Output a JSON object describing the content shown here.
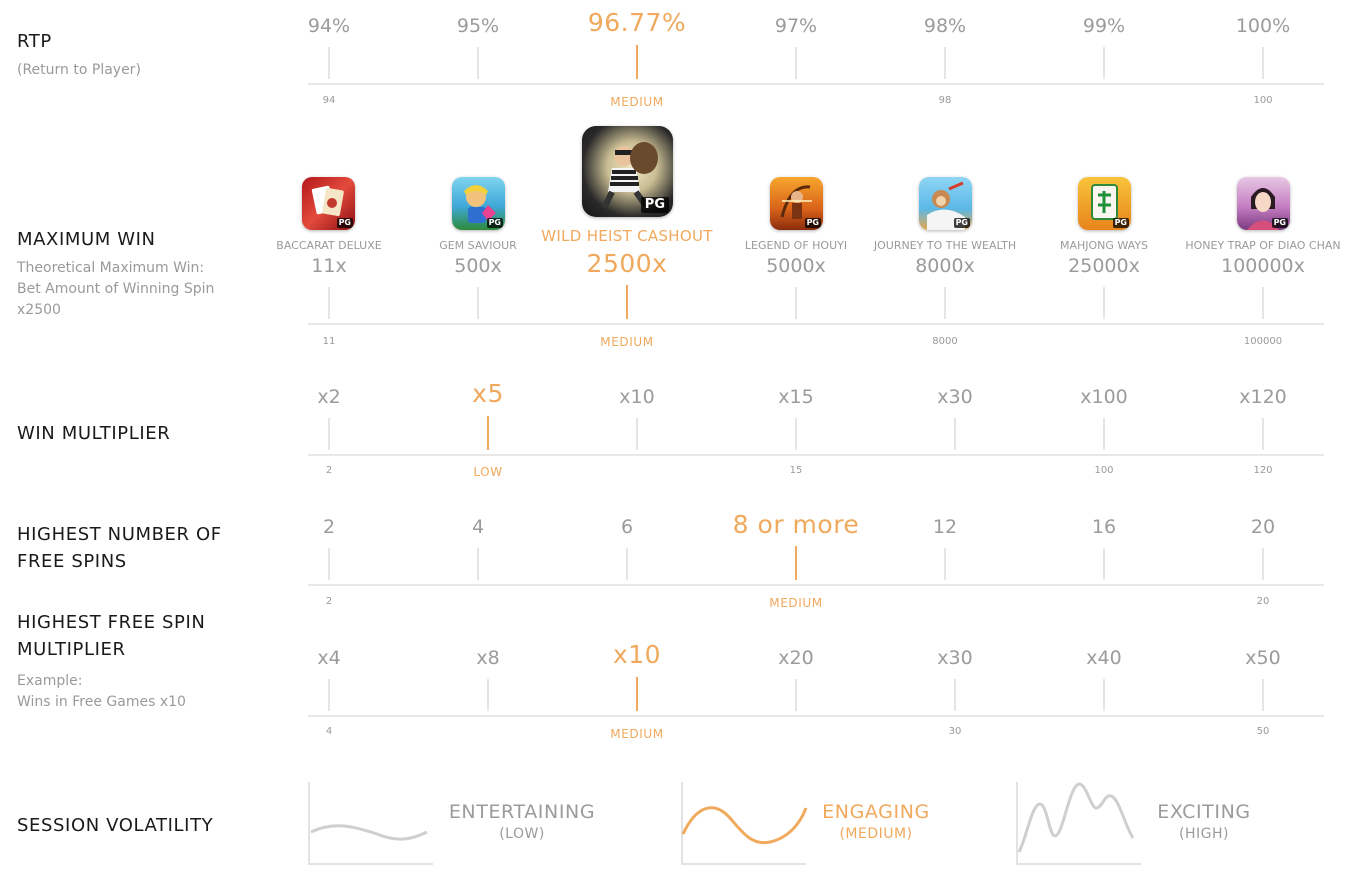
{
  "accent_color": "#f0a95d",
  "inactive_color": "#9b9b9b",
  "sections": {
    "rtp": {
      "title": "RTP",
      "subtitle": "(Return to Player)",
      "labels": [
        "94%",
        "95%",
        "96.77%",
        "97%",
        "98%",
        "99%",
        "100%"
      ],
      "active_index": 2,
      "scale_labels": [
        "94",
        "MEDIUM",
        "98",
        "100"
      ]
    },
    "max_win": {
      "title": "MAXIMUM WIN",
      "subtitle_lines": [
        "Theoretical Maximum Win:",
        "Bet Amount of Winning Spin",
        "x2500"
      ],
      "games": [
        {
          "name": "BACCARAT DELUXE",
          "value": "11x",
          "icon": "baccarat-deluxe-icon",
          "badge": "PG"
        },
        {
          "name": "GEM SAVIOUR",
          "value": "500x",
          "icon": "gem-saviour-icon",
          "badge": "PG"
        },
        {
          "name": "WILD HEIST CASHOUT",
          "value": "2500x",
          "icon": "wild-heist-cashout-icon",
          "badge": "PG"
        },
        {
          "name": "LEGEND OF HOUYI",
          "value": "5000x",
          "icon": "legend-of-houyi-icon",
          "badge": "PG"
        },
        {
          "name": "JOURNEY TO THE WEALTH",
          "value": "8000x",
          "icon": "journey-to-the-wealth-icon",
          "badge": "PG"
        },
        {
          "name": "MAHJONG WAYS",
          "value": "25000x",
          "icon": "mahjong-ways-icon",
          "badge": "PG"
        },
        {
          "name": "HONEY TRAP OF DIAO CHAN",
          "value": "100000x",
          "icon": "honey-trap-of-diao-chan-icon",
          "badge": "PG"
        }
      ],
      "active_index": 2,
      "scale_labels": [
        "11",
        "MEDIUM",
        "8000",
        "100000"
      ]
    },
    "win_multiplier": {
      "title": "WIN MULTIPLIER",
      "labels": [
        "x2",
        "x5",
        "x10",
        "x15",
        "x30",
        "x100",
        "x120"
      ],
      "active_index": 1,
      "scale_labels": [
        "2",
        "LOW",
        "15",
        "100",
        "120"
      ]
    },
    "free_spins": {
      "title_lines": [
        "HIGHEST NUMBER OF",
        "FREE SPINS"
      ],
      "labels": [
        "2",
        "4",
        "6",
        "8 or more",
        "12",
        "16",
        "20"
      ],
      "active_index": 3,
      "scale_labels": [
        "2",
        "MEDIUM",
        "20"
      ]
    },
    "free_spin_multiplier": {
      "title_lines": [
        "HIGHEST FREE SPIN",
        "MULTIPLIER"
      ],
      "subtitle_lines": [
        "Example:",
        "Wins in Free Games x10"
      ],
      "labels": [
        "x4",
        "x8",
        "x10",
        "x20",
        "x30",
        "x40",
        "x50"
      ],
      "active_index": 2,
      "scale_labels": [
        "4",
        "MEDIUM",
        "30",
        "50"
      ]
    },
    "volatility": {
      "title": "SESSION VOLATILITY",
      "options": [
        {
          "name": "ENTERTAINING",
          "level": "(LOW)",
          "active": false
        },
        {
          "name": "ENGAGING",
          "level": "(MEDIUM)",
          "active": true
        },
        {
          "name": "EXCITING",
          "level": "(HIGH)",
          "active": false
        }
      ]
    }
  }
}
